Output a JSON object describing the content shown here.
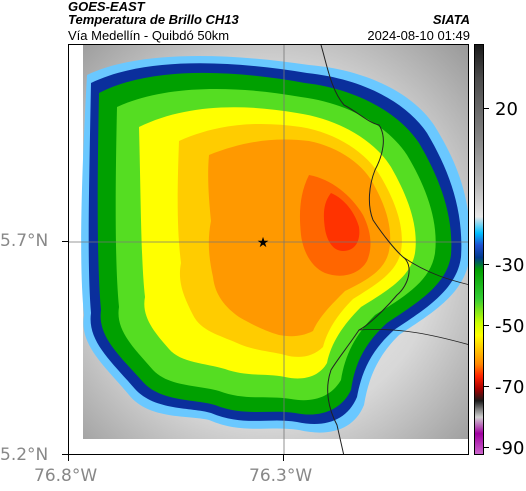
{
  "header": {
    "satellite": "GOES-EAST",
    "product": "Temperatura de Brillo CH13",
    "route": "Vía Medellín - Quibdó 50km",
    "organization": "SIATA",
    "timestamp": "2024-08-10 01:49"
  },
  "map": {
    "y_axis_labels": [
      "5.7°N",
      "5.2°N"
    ],
    "x_axis_labels": [
      "76.8°W",
      "76.3°W"
    ],
    "marker_icon": "star-icon"
  },
  "colorbar": {
    "labels": [
      "20",
      "-30",
      "-50",
      "-70",
      "-90"
    ]
  }
}
